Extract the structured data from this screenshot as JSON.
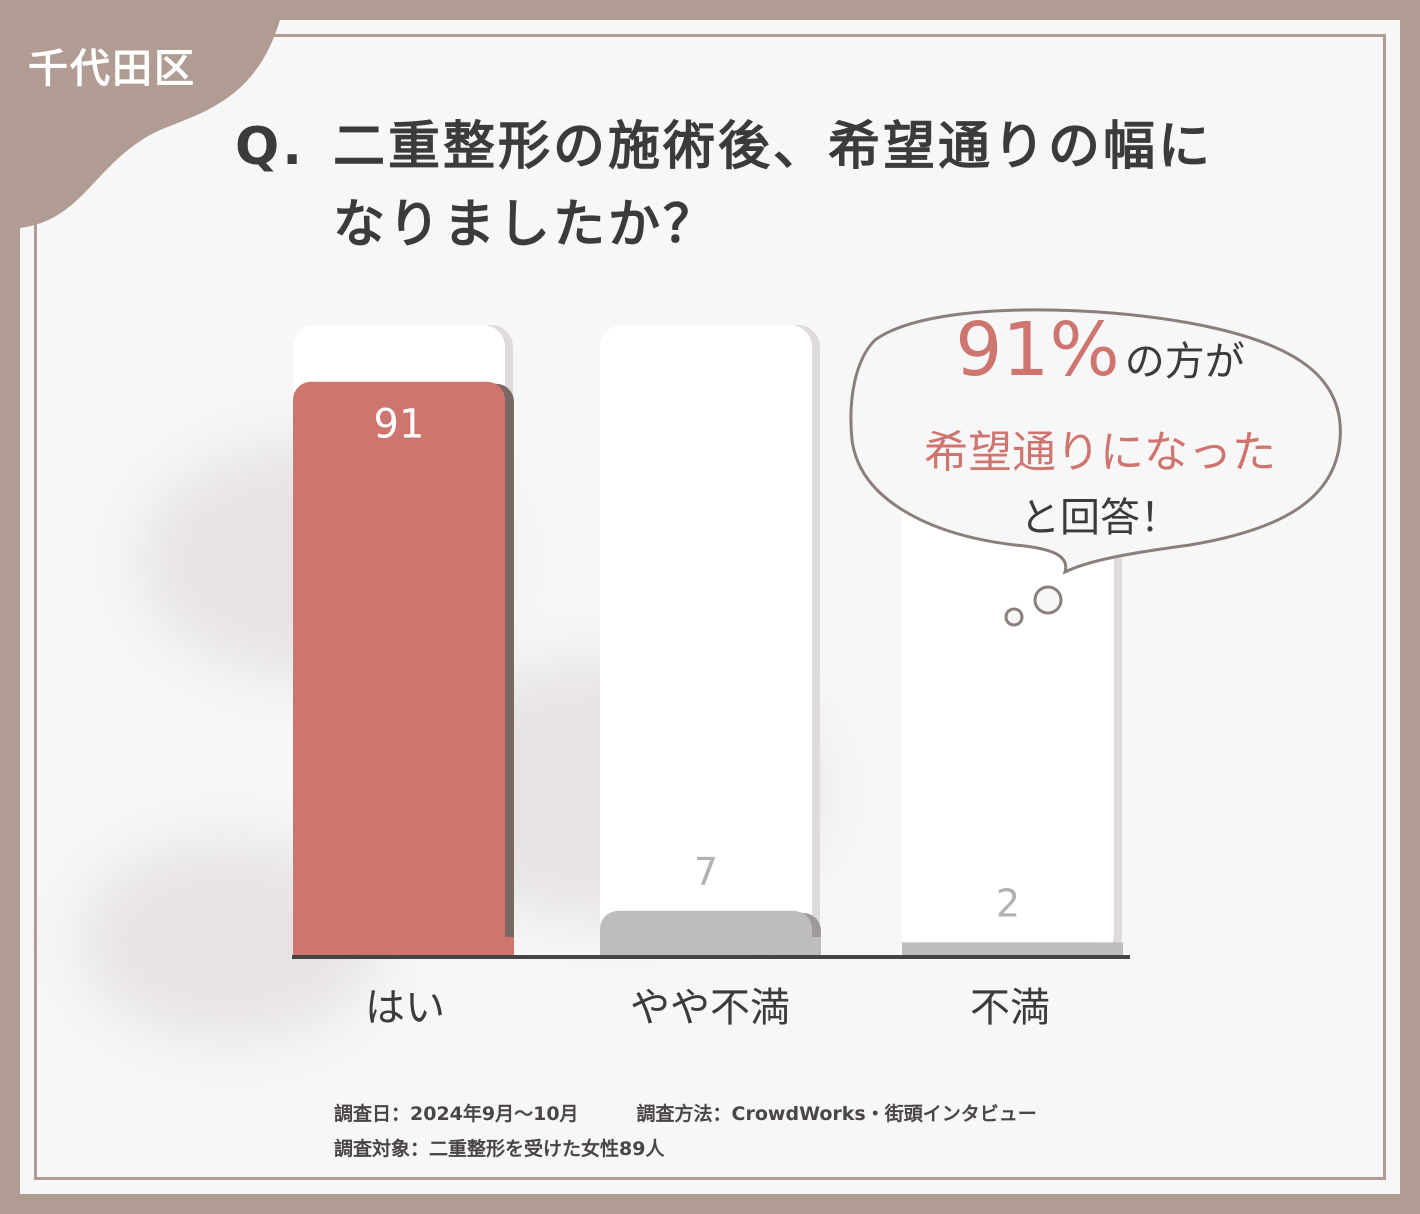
{
  "area_label": "千代田区",
  "question": {
    "prefix": "Q.",
    "line1": "二重整形の施術後、希望通りの幅に",
    "line2": "なりましたか？"
  },
  "callout": {
    "percent": "91%",
    "line1_rest": "の方が",
    "line2": "希望通りになった",
    "line3": "と回答！"
  },
  "footer": {
    "survey_date": "調査日：2024年9月～10月",
    "survey_method": "調査方法：CrowdWorks・街頭インタビュー",
    "survey_target": "調査対象：二重整形を受けた女性89人"
  },
  "colors": {
    "background": "#b09c93",
    "highlight_bar": "#cf7570",
    "other_bars": "#bfbcbc",
    "text": "#3d3a3a"
  },
  "chart_data": {
    "type": "bar",
    "categories": [
      "はい",
      "やや不満",
      "不満"
    ],
    "values": [
      91,
      7,
      2
    ],
    "data_labels": [
      "91",
      "7",
      "2"
    ],
    "ylim": [
      0,
      100
    ],
    "title": "",
    "xlabel": "",
    "ylabel": "",
    "grid": false,
    "legend": "none"
  }
}
